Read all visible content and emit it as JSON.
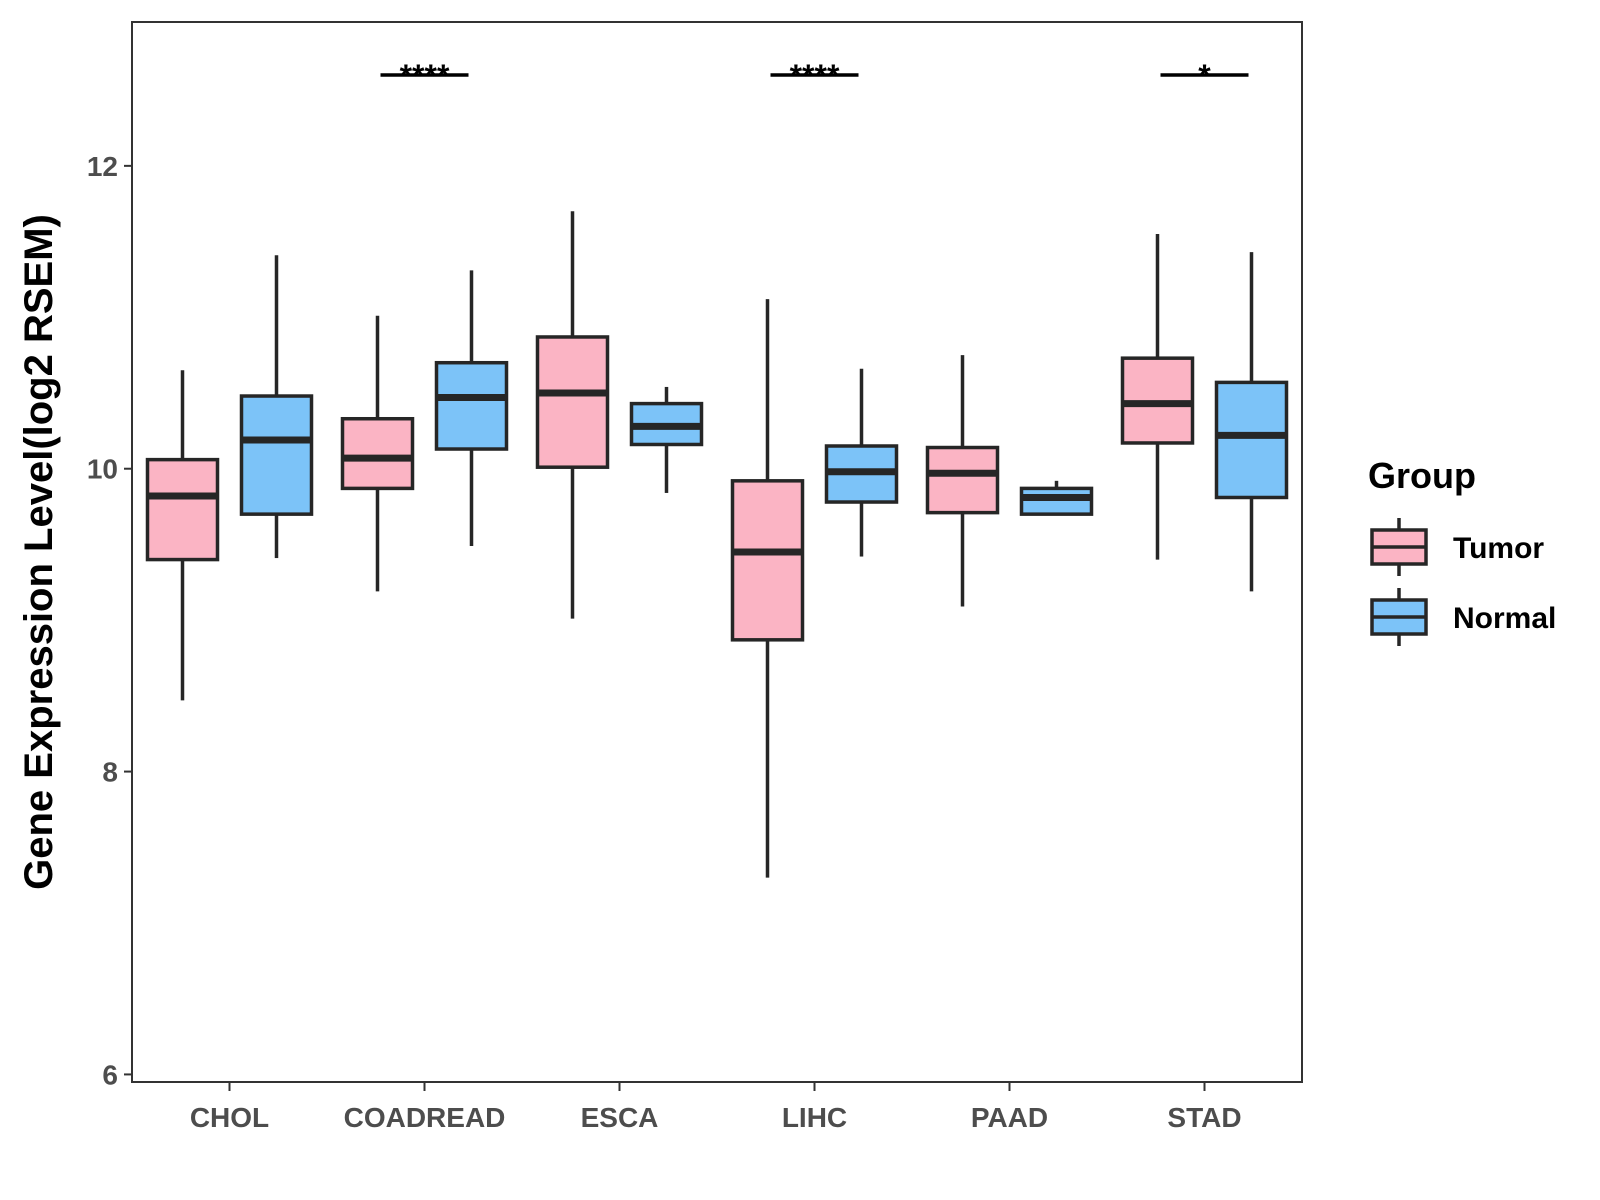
{
  "chart_data": {
    "type": "boxplot",
    "title": "",
    "xlabel": "",
    "ylabel": "Gene Expression Level(log2 RSEM)",
    "ylim": [
      5.95,
      12.95
    ],
    "yticks": [
      6,
      8,
      10,
      12
    ],
    "categories": [
      "CHOL",
      "COADREAD",
      "ESCA",
      "LIHC",
      "PAAD",
      "STAD"
    ],
    "legend": {
      "title": "Group",
      "position": "right",
      "entries": [
        "Tumor",
        "Normal"
      ]
    },
    "series": [
      {
        "name": "Tumor",
        "color": "#fbb4c4",
        "boxes": [
          {
            "whisker_low": 8.47,
            "q1": 9.4,
            "median": 9.82,
            "q3": 10.06,
            "whisker_high": 10.65
          },
          {
            "whisker_low": 9.19,
            "q1": 9.87,
            "median": 10.07,
            "q3": 10.33,
            "whisker_high": 11.01
          },
          {
            "whisker_low": 9.01,
            "q1": 10.01,
            "median": 10.5,
            "q3": 10.87,
            "whisker_high": 11.7
          },
          {
            "whisker_low": 7.3,
            "q1": 8.87,
            "median": 9.45,
            "q3": 9.92,
            "whisker_high": 11.12
          },
          {
            "whisker_low": 9.09,
            "q1": 9.71,
            "median": 9.97,
            "q3": 10.14,
            "whisker_high": 10.75
          },
          {
            "whisker_low": 9.4,
            "q1": 10.17,
            "median": 10.43,
            "q3": 10.73,
            "whisker_high": 11.55
          }
        ]
      },
      {
        "name": "Normal",
        "color": "#7cc3f8",
        "boxes": [
          {
            "whisker_low": 9.41,
            "q1": 9.7,
            "median": 10.19,
            "q3": 10.48,
            "whisker_high": 11.41
          },
          {
            "whisker_low": 9.49,
            "q1": 10.13,
            "median": 10.47,
            "q3": 10.7,
            "whisker_high": 11.31
          },
          {
            "whisker_low": 9.84,
            "q1": 10.16,
            "median": 10.28,
            "q3": 10.43,
            "whisker_high": 10.54
          },
          {
            "whisker_low": 9.42,
            "q1": 9.78,
            "median": 9.98,
            "q3": 10.15,
            "whisker_high": 10.66
          },
          {
            "whisker_low": 9.7,
            "q1": 9.7,
            "median": 9.81,
            "q3": 9.87,
            "whisker_high": 9.92
          },
          {
            "whisker_low": 9.19,
            "q1": 9.81,
            "median": 10.22,
            "q3": 10.57,
            "whisker_high": 11.43
          }
        ]
      }
    ],
    "annotations": [
      {
        "category": "COADREAD",
        "label": "****",
        "y": 12.6
      },
      {
        "category": "LIHC",
        "label": "****",
        "y": 12.6
      },
      {
        "category": "STAD",
        "label": "*",
        "y": 12.6
      }
    ]
  }
}
